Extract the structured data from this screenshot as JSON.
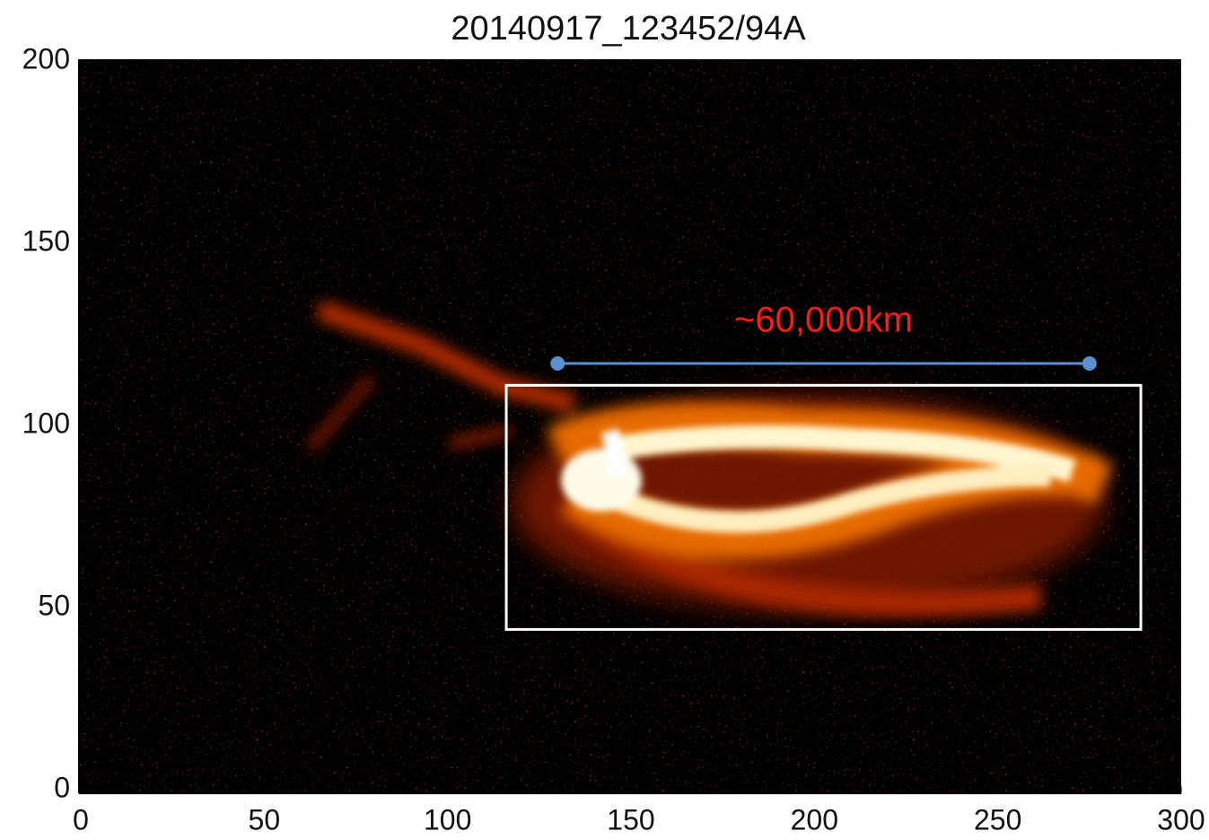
{
  "chart_data": {
    "type": "image",
    "title": "20140917_123452/94A",
    "xlim": [
      0,
      300
    ],
    "ylim": [
      0,
      200
    ],
    "xticks": [
      0,
      50,
      100,
      150,
      200,
      250,
      300
    ],
    "yticks": [
      0,
      50,
      100,
      150,
      200
    ],
    "measure_line": {
      "x": [
        130,
        275
      ],
      "y": [
        117,
        117
      ],
      "color": "#5b8fd0",
      "label": "~60,000km",
      "label_color": "#ff1a1a"
    },
    "box": {
      "x": [
        116,
        289
      ],
      "y": [
        44,
        111
      ],
      "color": "#ffffff"
    }
  }
}
